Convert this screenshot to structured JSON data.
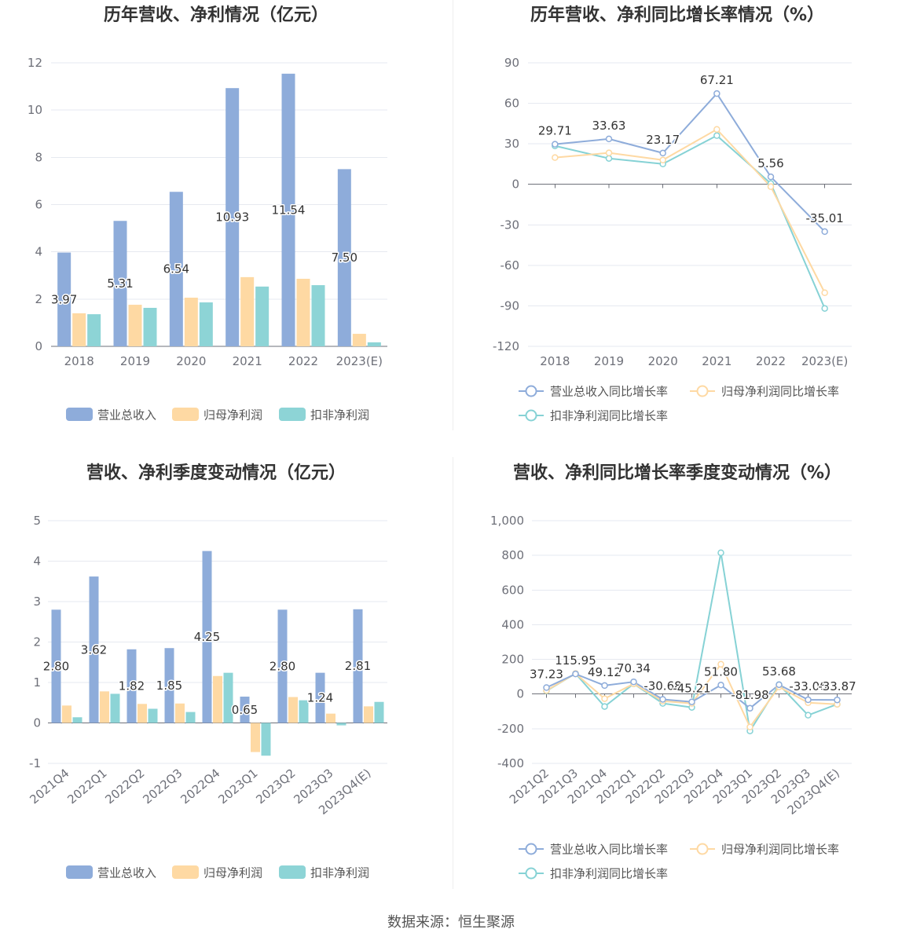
{
  "footer": {
    "source": "数据来源：恒生聚源"
  },
  "chart_data": [
    {
      "type": "bar",
      "title": "历年营收、净利情况（亿元）",
      "categories": [
        "2018",
        "2019",
        "2020",
        "2021",
        "2022",
        "2023(E)"
      ],
      "yaxis": {
        "min": 0,
        "max": 12,
        "ticks": [
          0,
          2,
          4,
          6,
          8,
          10,
          12
        ],
        "tick_labels": [
          "0",
          "2",
          "4",
          "6",
          "8",
          "10",
          "12"
        ]
      },
      "grid": true,
      "legend": "bottom",
      "series": [
        {
          "name": "营业总收入",
          "color": "#8eacda",
          "values": [
            3.97,
            5.31,
            6.54,
            10.93,
            11.54,
            7.5
          ],
          "data_labels": [
            "3.97",
            "5.31",
            "6.54",
            "10.93",
            "11.54",
            "7.50"
          ]
        },
        {
          "name": "归母净利润",
          "color": "#fed9a3",
          "values": [
            1.4,
            1.76,
            2.06,
            2.93,
            2.86,
            0.53
          ]
        },
        {
          "name": "扣非净利润",
          "color": "#8dd4d6",
          "values": [
            1.36,
            1.63,
            1.86,
            2.53,
            2.59,
            0.17
          ]
        }
      ]
    },
    {
      "type": "line",
      "title": "历年营收、净利同比增长率情况（%）",
      "categories": [
        "2018",
        "2019",
        "2020",
        "2021",
        "2022",
        "2023(E)"
      ],
      "yaxis": {
        "min": -120,
        "max": 90,
        "ticks": [
          -120,
          -90,
          -60,
          -30,
          0,
          30,
          60,
          90
        ],
        "tick_labels": [
          "-120",
          "-90",
          "-60",
          "-30",
          "0",
          "30",
          "60",
          "90"
        ]
      },
      "grid": true,
      "legend": "bottom",
      "series": [
        {
          "name": "营业总收入同比增长率",
          "color": "#8eacda",
          "values": [
            29.71,
            33.63,
            23.17,
            67.21,
            5.56,
            -35.01
          ],
          "data_labels": [
            "29.71",
            "33.63",
            "23.17",
            "67.21",
            "5.56",
            "-35.01"
          ]
        },
        {
          "name": "归母净利润同比增长率",
          "color": "#fed9a3",
          "values": [
            19.8,
            23.3,
            18.0,
            40.7,
            -1.7,
            -80.3
          ]
        },
        {
          "name": "扣非净利润同比增长率",
          "color": "#86d2d5",
          "values": [
            28.5,
            19.2,
            15.1,
            36.1,
            0.6,
            -91.9
          ]
        }
      ]
    },
    {
      "type": "bar",
      "title": "营收、净利季度变动情况（亿元）",
      "categories": [
        "2021Q4",
        "2022Q1",
        "2022Q2",
        "2022Q3",
        "2022Q4",
        "2023Q1",
        "2023Q2",
        "2023Q3",
        "2023Q4(E)"
      ],
      "yaxis": {
        "min": -1,
        "max": 5,
        "ticks": [
          -1,
          0,
          1,
          2,
          3,
          4,
          5
        ],
        "tick_labels": [
          "-1",
          "0",
          "1",
          "2",
          "3",
          "4",
          "5"
        ]
      },
      "grid": true,
      "legend": "bottom",
      "series": [
        {
          "name": "营业总收入",
          "color": "#8eacda",
          "values": [
            2.8,
            3.62,
            1.82,
            1.85,
            4.25,
            0.65,
            2.8,
            1.24,
            2.81
          ],
          "data_labels": [
            "2.80",
            "3.62",
            "1.82",
            "1.85",
            "4.25",
            "0.65",
            "2.80",
            "1.24",
            "2.81"
          ]
        },
        {
          "name": "归母净利润",
          "color": "#fed9a3",
          "values": [
            0.43,
            0.78,
            0.47,
            0.48,
            1.16,
            -0.72,
            0.64,
            0.23,
            0.41
          ]
        },
        {
          "name": "扣非净利润",
          "color": "#8dd4d6",
          "values": [
            0.14,
            0.72,
            0.35,
            0.27,
            1.24,
            -0.81,
            0.56,
            -0.06,
            0.52
          ]
        }
      ]
    },
    {
      "type": "line",
      "title": "营收、净利同比增长率季度变动情况（%）",
      "categories": [
        "2021Q2",
        "2021Q3",
        "2021Q4",
        "2022Q1",
        "2022Q2",
        "2022Q3",
        "2022Q4",
        "2023Q1",
        "2023Q2",
        "2023Q3",
        "2023Q4(E)"
      ],
      "yaxis": {
        "min": -400,
        "max": 1000,
        "ticks": [
          -400,
          -200,
          0,
          200,
          400,
          600,
          800,
          1000
        ],
        "tick_labels": [
          "-400",
          "-200",
          "0",
          "200",
          "400",
          "600",
          "800",
          "1,000"
        ]
      },
      "grid": true,
      "legend": "bottom",
      "series": [
        {
          "name": "营业总收入同比增长率",
          "color": "#8eacda",
          "values": [
            37.23,
            115.95,
            49.12,
            70.34,
            -30.68,
            -45.21,
            51.8,
            -81.98,
            53.68,
            -33.06,
            -33.87
          ],
          "data_labels": [
            "37.23",
            "115.95",
            "49.12",
            "70.34",
            "-30.68",
            "-45.21",
            "51.80",
            "-81.98",
            "53.68",
            "-33.06",
            "-33.87"
          ]
        },
        {
          "name": "归母净利润同比增长率",
          "color": "#fed9a3",
          "values": [
            20,
            118,
            -27,
            59,
            -41,
            -54,
            172,
            -190,
            41,
            -50,
            -59
          ]
        },
        {
          "name": "扣非净利润同比增长率",
          "color": "#86d2d5",
          "values": [
            18,
            118,
            -72,
            59,
            -54,
            -77,
            815,
            -213,
            54,
            -122,
            -59
          ]
        }
      ]
    }
  ]
}
